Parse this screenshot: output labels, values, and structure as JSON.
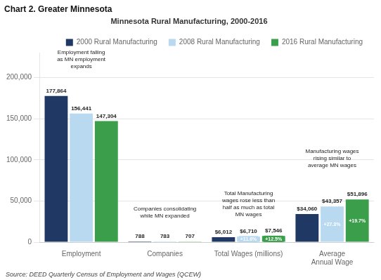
{
  "chart_data": {
    "type": "bar",
    "title": "Chart 2. Greater Minnesota",
    "subtitle": "Minnesota Rural Manufacturing, 2000-2016",
    "source": "Source: DEED Quarterly Census of Employment and Wages (QCEW)",
    "categories": [
      "Employment",
      "Companies",
      "Total Wages (millions)",
      "Average\nAnnual Wage"
    ],
    "series": [
      {
        "name": "2000 Rural Manufacturing",
        "color": "#1f3864",
        "values": [
          177864,
          788,
          6012,
          34060
        ],
        "value_labels": [
          "177,864",
          "788",
          "$6,012",
          "$34,060"
        ]
      },
      {
        "name": "2008 Rural Manufacturing",
        "color": "#b8d9f0",
        "values": [
          156441,
          783,
          6710,
          43357
        ],
        "value_labels": [
          "156,441",
          "783",
          "$6,710",
          "$43,357"
        ]
      },
      {
        "name": "2016 Rural Manufacturing",
        "color": "#3a9e4a",
        "values": [
          147304,
          707,
          7546,
          51896
        ],
        "value_labels": [
          "147,304",
          "707",
          "$7,546",
          "$51,896"
        ]
      }
    ],
    "ylim": [
      0,
      230000
    ],
    "yticks": [
      0,
      {
        "value": 50000,
        "label": "50,000"
      },
      {
        "value": 100000,
        "label": "100,000"
      },
      {
        "value": 150000,
        "label": "150,000"
      },
      {
        "value": 200000,
        "label": "200,000"
      }
    ],
    "grid": true,
    "legend": "upper right",
    "data_labels": true,
    "annotations": [
      {
        "text": "Employment falling\nas MN employment\nexpands",
        "category": "Employment",
        "y": 210000
      },
      {
        "text": "Companies consolidating\nwhile MN expanded",
        "category": "Companies",
        "y": 28000
      },
      {
        "text": "Total Manufacturing\nwages rose less than\nhalf as much as total\nMN wages",
        "category": "Total Wages (millions)",
        "y": 30000
      },
      {
        "text": "Manufacturing wages\nrising similar to\naverage MN wages",
        "category": "Average\nAnnual Wage",
        "y": 90000
      },
      {
        "text": "+11.6%",
        "category": "Total Wages (millions)",
        "series": "2008 Rural Manufacturing"
      },
      {
        "text": "+12.5%",
        "category": "Total Wages (millions)",
        "series": "2016 Rural Manufacturing"
      },
      {
        "text": "+27.3%",
        "category": "Average\nAnnual Wage",
        "series": "2008 Rural Manufacturing"
      },
      {
        "text": "+19.7%",
        "category": "Average\nAnnual Wage",
        "series": "2016 Rural Manufacturing"
      }
    ]
  }
}
